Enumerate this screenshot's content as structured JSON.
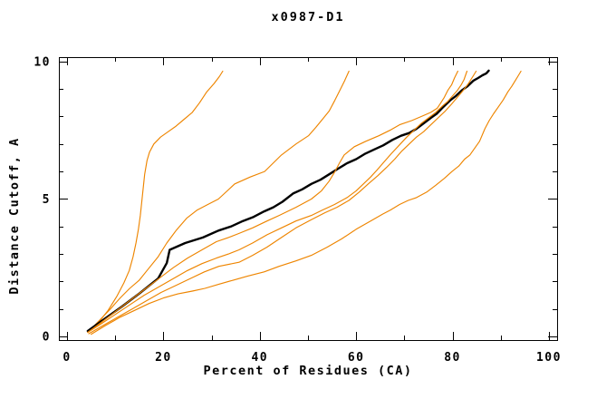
{
  "chart_data": {
    "type": "line",
    "title": "x0987-D1",
    "xlabel": "Percent of Residues (CA)",
    "ylabel": "Distance Cutoff, A",
    "xlim": [
      -1.7,
      101.7
    ],
    "ylim": [
      -0.13,
      10.16
    ],
    "x_major_ticks": [
      0,
      20,
      40,
      60,
      80,
      100
    ],
    "x_minor_ticks": [
      10,
      30,
      50,
      70,
      90
    ],
    "y_major_ticks": [
      0,
      5,
      10
    ],
    "y_minor_ticks": [
      1,
      2,
      3,
      4,
      6,
      7,
      8,
      9
    ],
    "grid": false,
    "legend": "none",
    "frame": "full box, inward ticks",
    "colors": {
      "orange": "#ee8500",
      "black": "#000000"
    },
    "series": [
      {
        "name": "orange-curve-1",
        "color": "#ee8500",
        "width": 1.15,
        "points": [
          [
            4.3,
            0.15
          ],
          [
            6.5,
            0.5
          ],
          [
            8.5,
            0.95
          ],
          [
            10.3,
            1.45
          ],
          [
            11.8,
            1.95
          ],
          [
            12.9,
            2.4
          ],
          [
            13.7,
            2.9
          ],
          [
            14.3,
            3.4
          ],
          [
            14.8,
            3.9
          ],
          [
            15.2,
            4.4
          ],
          [
            15.5,
            4.9
          ],
          [
            15.8,
            5.4
          ],
          [
            16.1,
            5.9
          ],
          [
            16.6,
            6.4
          ],
          [
            17.1,
            6.7
          ],
          [
            18.0,
            7.0
          ],
          [
            19.4,
            7.25
          ],
          [
            21.0,
            7.45
          ],
          [
            22.6,
            7.65
          ],
          [
            24.3,
            7.9
          ],
          [
            26.0,
            8.15
          ],
          [
            27.5,
            8.5
          ],
          [
            29.0,
            8.9
          ],
          [
            30.5,
            9.2
          ],
          [
            31.6,
            9.45
          ],
          [
            32.3,
            9.65
          ]
        ]
      },
      {
        "name": "orange-curve-2",
        "color": "#ee8500",
        "width": 1.15,
        "points": [
          [
            4.3,
            0.15
          ],
          [
            6.8,
            0.6
          ],
          [
            9.0,
            1.0
          ],
          [
            11.0,
            1.4
          ],
          [
            13.0,
            1.75
          ],
          [
            15.0,
            2.05
          ],
          [
            16.6,
            2.4
          ],
          [
            18.9,
            2.9
          ],
          [
            20.7,
            3.4
          ],
          [
            22.6,
            3.85
          ],
          [
            24.8,
            4.3
          ],
          [
            27.0,
            4.6
          ],
          [
            29.2,
            4.8
          ],
          [
            31.4,
            5.0
          ],
          [
            34.8,
            5.55
          ],
          [
            38.0,
            5.8
          ],
          [
            41.0,
            6.0
          ],
          [
            44.5,
            6.6
          ],
          [
            47.5,
            7.0
          ],
          [
            50.1,
            7.3
          ],
          [
            51.6,
            7.6
          ],
          [
            53.0,
            7.9
          ],
          [
            54.4,
            8.2
          ],
          [
            55.6,
            8.6
          ],
          [
            56.6,
            8.95
          ],
          [
            57.6,
            9.3
          ],
          [
            58.5,
            9.65
          ]
        ]
      },
      {
        "name": "black-curve",
        "color": "#000000",
        "width": 2.4,
        "points": [
          [
            4.3,
            0.2
          ],
          [
            7.7,
            0.63
          ],
          [
            11.4,
            1.09
          ],
          [
            15.1,
            1.58
          ],
          [
            18.9,
            2.11
          ],
          [
            20.7,
            2.67
          ],
          [
            21.3,
            3.15
          ],
          [
            24.5,
            3.4
          ],
          [
            28.2,
            3.6
          ],
          [
            31.4,
            3.85
          ],
          [
            34.0,
            4.0
          ],
          [
            36.5,
            4.2
          ],
          [
            38.7,
            4.35
          ],
          [
            40.9,
            4.55
          ],
          [
            42.8,
            4.7
          ],
          [
            44.7,
            4.9
          ],
          [
            46.9,
            5.2
          ],
          [
            48.8,
            5.35
          ],
          [
            50.7,
            5.55
          ],
          [
            52.6,
            5.7
          ],
          [
            54.4,
            5.9
          ],
          [
            56.2,
            6.1
          ],
          [
            58.1,
            6.3
          ],
          [
            60.0,
            6.45
          ],
          [
            61.9,
            6.65
          ],
          [
            63.7,
            6.8
          ],
          [
            65.6,
            6.95
          ],
          [
            67.5,
            7.15
          ],
          [
            69.3,
            7.3
          ],
          [
            71.0,
            7.4
          ],
          [
            72.5,
            7.55
          ],
          [
            74.0,
            7.75
          ],
          [
            75.5,
            7.95
          ],
          [
            76.7,
            8.1
          ],
          [
            77.8,
            8.3
          ],
          [
            78.7,
            8.45
          ],
          [
            79.6,
            8.6
          ],
          [
            80.7,
            8.75
          ],
          [
            81.9,
            8.95
          ],
          [
            83.1,
            9.1
          ],
          [
            84.3,
            9.3
          ],
          [
            85.3,
            9.4
          ],
          [
            86.2,
            9.5
          ],
          [
            87.0,
            9.57
          ],
          [
            87.5,
            9.67
          ]
        ]
      },
      {
        "name": "orange-curve-3",
        "color": "#ee8500",
        "width": 1.15,
        "points": [
          [
            4.3,
            0.15
          ],
          [
            7.0,
            0.5
          ],
          [
            10.0,
            0.9
          ],
          [
            13.0,
            1.3
          ],
          [
            16.0,
            1.7
          ],
          [
            19.0,
            2.1
          ],
          [
            22.0,
            2.5
          ],
          [
            25.0,
            2.85
          ],
          [
            28.0,
            3.15
          ],
          [
            31.0,
            3.45
          ],
          [
            33.5,
            3.6
          ],
          [
            35.7,
            3.75
          ],
          [
            38.5,
            3.95
          ],
          [
            41.5,
            4.2
          ],
          [
            44.0,
            4.4
          ],
          [
            47.5,
            4.7
          ],
          [
            50.7,
            5.0
          ],
          [
            52.8,
            5.3
          ],
          [
            54.4,
            5.65
          ],
          [
            55.6,
            6.0
          ],
          [
            56.5,
            6.3
          ],
          [
            57.5,
            6.6
          ],
          [
            59.6,
            6.9
          ],
          [
            62.0,
            7.1
          ],
          [
            64.7,
            7.3
          ],
          [
            67.0,
            7.5
          ],
          [
            69.0,
            7.7
          ],
          [
            71.5,
            7.85
          ],
          [
            73.5,
            8.0
          ],
          [
            75.5,
            8.15
          ],
          [
            76.8,
            8.3
          ],
          [
            77.4,
            8.45
          ],
          [
            78.3,
            8.7
          ],
          [
            79.0,
            8.95
          ],
          [
            79.8,
            9.15
          ],
          [
            80.4,
            9.4
          ],
          [
            81.1,
            9.65
          ]
        ]
      },
      {
        "name": "orange-curve-4",
        "color": "#ee8500",
        "width": 1.15,
        "points": [
          [
            4.3,
            0.15
          ],
          [
            7.0,
            0.45
          ],
          [
            10.0,
            0.8
          ],
          [
            13.0,
            1.15
          ],
          [
            16.0,
            1.5
          ],
          [
            19.0,
            1.8
          ],
          [
            22.0,
            2.1
          ],
          [
            25.0,
            2.4
          ],
          [
            28.0,
            2.65
          ],
          [
            31.0,
            2.85
          ],
          [
            33.5,
            3.0
          ],
          [
            35.7,
            3.15
          ],
          [
            38.5,
            3.4
          ],
          [
            41.5,
            3.7
          ],
          [
            44.5,
            3.95
          ],
          [
            47.5,
            4.2
          ],
          [
            50.7,
            4.4
          ],
          [
            53.0,
            4.6
          ],
          [
            55.5,
            4.8
          ],
          [
            58.1,
            5.05
          ],
          [
            60.0,
            5.3
          ],
          [
            61.5,
            5.55
          ],
          [
            63.0,
            5.8
          ],
          [
            64.3,
            6.05
          ],
          [
            65.8,
            6.35
          ],
          [
            67.3,
            6.65
          ],
          [
            68.9,
            6.95
          ],
          [
            70.5,
            7.25
          ],
          [
            72.0,
            7.5
          ],
          [
            73.5,
            7.75
          ],
          [
            75.0,
            7.95
          ],
          [
            76.5,
            8.15
          ],
          [
            78.0,
            8.4
          ],
          [
            79.0,
            8.55
          ],
          [
            80.0,
            8.75
          ],
          [
            81.0,
            8.95
          ],
          [
            81.8,
            9.15
          ],
          [
            82.4,
            9.35
          ],
          [
            83.0,
            9.65
          ]
        ]
      },
      {
        "name": "orange-curve-5",
        "color": "#ee8500",
        "width": 1.15,
        "points": [
          [
            4.5,
            0.1
          ],
          [
            7.5,
            0.4
          ],
          [
            10.5,
            0.7
          ],
          [
            13.5,
            1.0
          ],
          [
            16.5,
            1.3
          ],
          [
            19.5,
            1.6
          ],
          [
            22.5,
            1.85
          ],
          [
            25.5,
            2.1
          ],
          [
            28.5,
            2.35
          ],
          [
            31.5,
            2.55
          ],
          [
            35.7,
            2.7
          ],
          [
            38.5,
            2.95
          ],
          [
            41.5,
            3.25
          ],
          [
            44.5,
            3.6
          ],
          [
            47.5,
            3.95
          ],
          [
            50.7,
            4.25
          ],
          [
            53.5,
            4.5
          ],
          [
            56.0,
            4.7
          ],
          [
            58.5,
            4.95
          ],
          [
            60.6,
            5.25
          ],
          [
            62.5,
            5.55
          ],
          [
            64.5,
            5.85
          ],
          [
            66.3,
            6.15
          ],
          [
            68.0,
            6.45
          ],
          [
            69.5,
            6.75
          ],
          [
            71.0,
            7.0
          ],
          [
            72.5,
            7.25
          ],
          [
            74.0,
            7.45
          ],
          [
            75.5,
            7.7
          ],
          [
            77.0,
            7.95
          ],
          [
            78.5,
            8.2
          ],
          [
            79.8,
            8.45
          ],
          [
            81.0,
            8.7
          ],
          [
            82.2,
            8.95
          ],
          [
            83.3,
            9.2
          ],
          [
            84.2,
            9.45
          ],
          [
            84.9,
            9.65
          ]
        ]
      },
      {
        "name": "orange-curve-6",
        "color": "#ee8500",
        "width": 1.15,
        "points": [
          [
            5.0,
            0.08
          ],
          [
            8.0,
            0.4
          ],
          [
            11.0,
            0.7
          ],
          [
            14.0,
            0.95
          ],
          [
            17.0,
            1.2
          ],
          [
            20.0,
            1.4
          ],
          [
            23.0,
            1.55
          ],
          [
            26.0,
            1.65
          ],
          [
            28.6,
            1.75
          ],
          [
            31.5,
            1.9
          ],
          [
            34.5,
            2.05
          ],
          [
            37.5,
            2.2
          ],
          [
            40.9,
            2.35
          ],
          [
            44.0,
            2.55
          ],
          [
            47.5,
            2.75
          ],
          [
            50.7,
            2.95
          ],
          [
            54.0,
            3.25
          ],
          [
            57.0,
            3.55
          ],
          [
            60.0,
            3.9
          ],
          [
            63.0,
            4.2
          ],
          [
            65.5,
            4.45
          ],
          [
            67.1,
            4.6
          ],
          [
            69.0,
            4.8
          ],
          [
            70.8,
            4.95
          ],
          [
            72.5,
            5.05
          ],
          [
            74.6,
            5.25
          ],
          [
            76.5,
            5.5
          ],
          [
            78.3,
            5.75
          ],
          [
            79.9,
            6.0
          ],
          [
            81.3,
            6.2
          ],
          [
            82.5,
            6.45
          ],
          [
            83.6,
            6.6
          ],
          [
            84.6,
            6.85
          ],
          [
            85.6,
            7.1
          ],
          [
            86.7,
            7.55
          ],
          [
            87.6,
            7.85
          ],
          [
            88.5,
            8.1
          ],
          [
            89.5,
            8.35
          ],
          [
            90.5,
            8.6
          ],
          [
            91.5,
            8.9
          ],
          [
            92.3,
            9.1
          ],
          [
            93.0,
            9.3
          ],
          [
            93.7,
            9.5
          ],
          [
            94.2,
            9.65
          ]
        ]
      }
    ]
  }
}
